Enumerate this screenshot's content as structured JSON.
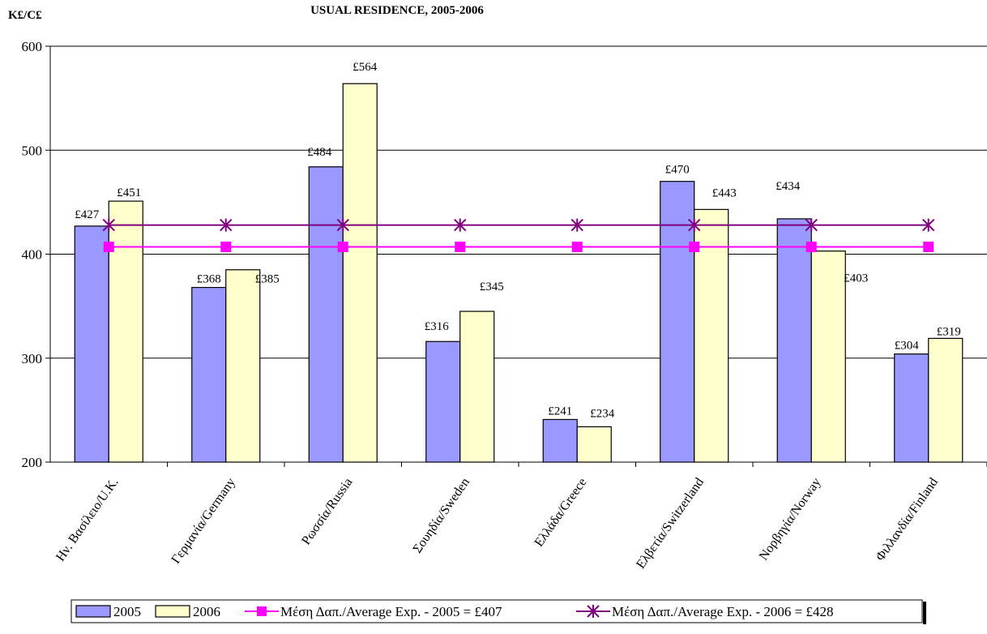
{
  "chart_data": {
    "type": "bar",
    "title": "USUAL RESIDENCE, 2005-2006",
    "ylabel": "K£/C£",
    "ylim": [
      200,
      600
    ],
    "yticks": [
      200,
      300,
      400,
      500,
      600
    ],
    "grid": true,
    "legend_position": "bottom",
    "categories": [
      "Ην. Βασίλειο/U.K.",
      "Γερμανία/Germany",
      "Ρωσσία/Russia",
      "Σουηδία/Sweden",
      "Ελλάδα/Greece",
      "Ελβετία/Switzerland",
      "Νορβηγία/Norway",
      "Φιλλανδία/Finland"
    ],
    "series": [
      {
        "name": "2005",
        "color": "#9999ff",
        "values": [
          427,
          368,
          484,
          316,
          241,
          470,
          434,
          304
        ],
        "labels": [
          "£427",
          "£368",
          "£484",
          "£316",
          "£241",
          "£470",
          "£434",
          "£304"
        ]
      },
      {
        "name": "2006",
        "color": "#ffffcc",
        "values": [
          451,
          385,
          564,
          345,
          234,
          443,
          403,
          319
        ],
        "labels": [
          "£451",
          "£385",
          "£564",
          "£345",
          "£234",
          "£443",
          "£403",
          "£319"
        ]
      }
    ],
    "reference_lines": [
      {
        "name": "Μέση Δαπ./Average Exp. - 2005 = £407",
        "value": 407,
        "color": "#ff00ff",
        "marker": "square"
      },
      {
        "name": "Μέση Δαπ./Average Exp. - 2006 = £428",
        "value": 428,
        "color": "#800080",
        "marker": "star"
      }
    ]
  }
}
